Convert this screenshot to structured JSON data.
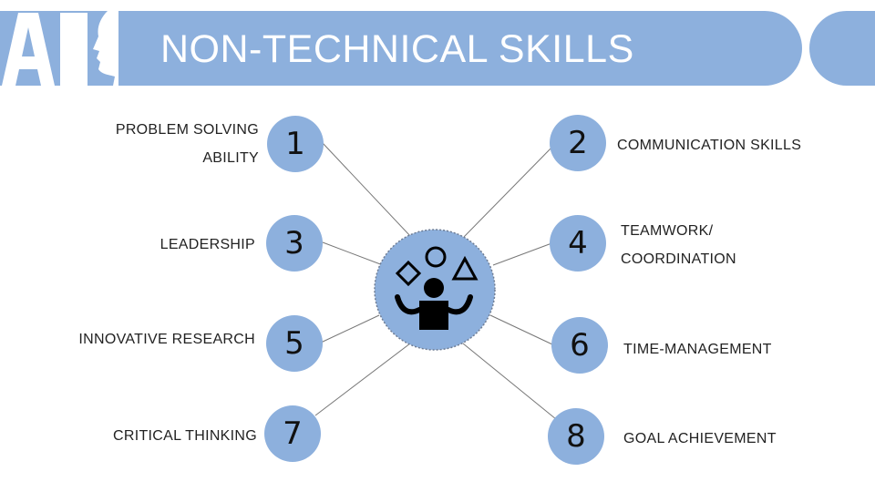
{
  "title": "NON-TECHNICAL SKILLS",
  "logo": {
    "text": "AI",
    "color": "#ffffff"
  },
  "colors": {
    "accent": "#8db0dd",
    "text": "#222222",
    "title": "#ffffff",
    "connector": "#777777",
    "icon": "#000000"
  },
  "center_icon": "juggler-icon",
  "skills": [
    {
      "number": "1",
      "label_lines": [
        "PROBLEM SOLVING",
        "ABILITY"
      ]
    },
    {
      "number": "2",
      "label_lines": [
        "COMMUNICATION SKILLS"
      ]
    },
    {
      "number": "3",
      "label_lines": [
        "LEADERSHIP"
      ]
    },
    {
      "number": "4",
      "label_lines": [
        "TEAMWORK/",
        "COORDINATION"
      ]
    },
    {
      "number": "5",
      "label_lines": [
        "INNOVATIVE RESEARCH"
      ]
    },
    {
      "number": "6",
      "label_lines": [
        "TIME-MANAGEMENT"
      ]
    },
    {
      "number": "7",
      "label_lines": [
        "CRITICAL THINKING"
      ]
    },
    {
      "number": "8",
      "label_lines": [
        "GOAL ACHIEVEMENT"
      ]
    }
  ]
}
